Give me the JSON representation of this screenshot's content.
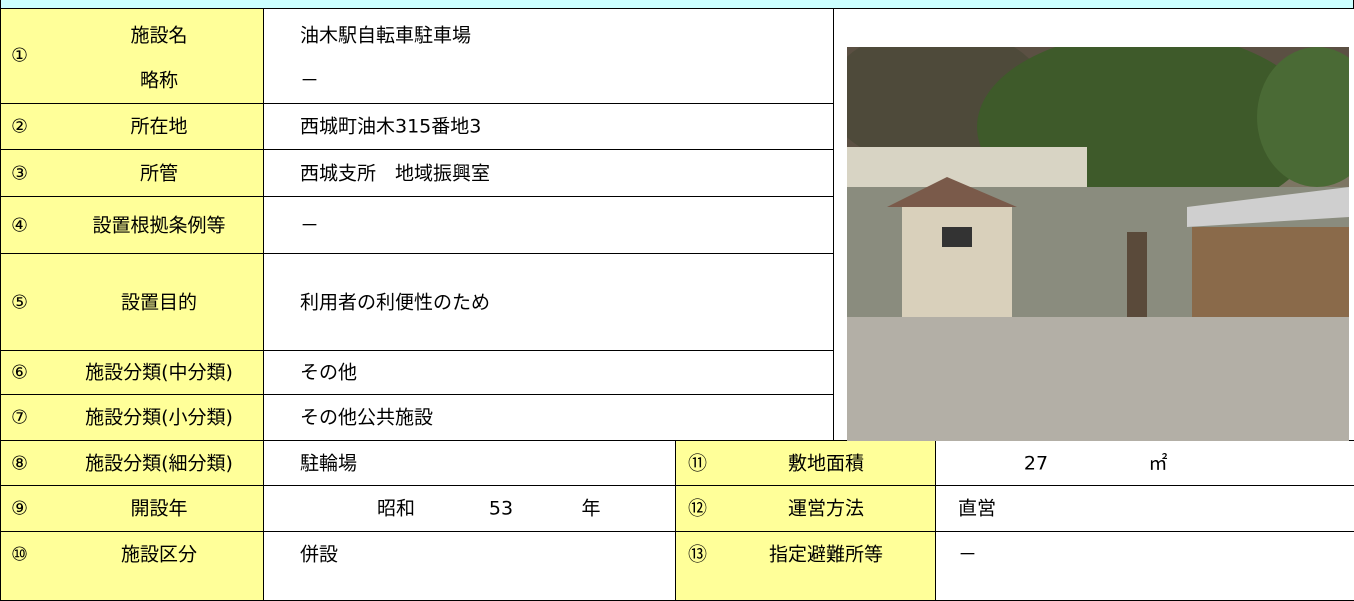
{
  "items": [
    {
      "num": "①",
      "label": "施設名",
      "sub_label": "略称",
      "value": "油木駅自転車駐車場",
      "sub_value": "－"
    },
    {
      "num": "②",
      "label": "所在地",
      "value": "西城町油木315番地3"
    },
    {
      "num": "③",
      "label": "所管",
      "value": "西城支所　地域振興室"
    },
    {
      "num": "④",
      "label": "設置根拠条例等",
      "value": "－"
    },
    {
      "num": "⑤",
      "label": "設置目的",
      "value": "利用者の利便性のため"
    },
    {
      "num": "⑥",
      "label": "施設分類(中分類)",
      "value": "その他"
    },
    {
      "num": "⑦",
      "label": "施設分類(小分類)",
      "value": "その他公共施設"
    },
    {
      "num": "⑧",
      "label": "施設分類(細分類)",
      "value": "駐輪場"
    },
    {
      "num": "⑨",
      "label": "開設年",
      "era": "昭和",
      "year": 53,
      "unit": "年"
    },
    {
      "num": "⑩",
      "label": "施設区分",
      "value": "併設"
    },
    {
      "num": "⑪",
      "label": "敷地面積",
      "value": 27,
      "unit": "㎡"
    },
    {
      "num": "⑫",
      "label": "運営方法",
      "value": "直営"
    },
    {
      "num": "⑬",
      "label": "指定避難所等",
      "value": "－"
    }
  ]
}
